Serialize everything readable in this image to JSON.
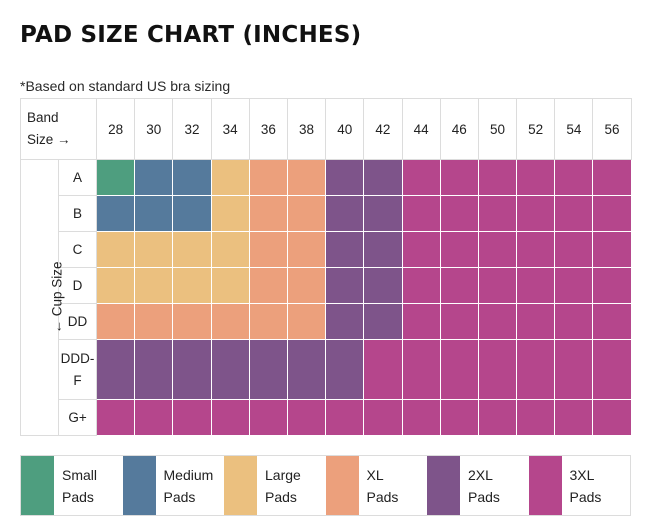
{
  "title": "PAD SIZE CHART (INCHES)",
  "note": "*Based on standard US bra sizing",
  "band_header": [
    "Band",
    "Size →"
  ],
  "cup_axis_label": "← Cup Size",
  "colors": {
    "Small": "#4e9e7f",
    "Medium": "#557a9c",
    "Large": "#ebc07f",
    "XL": "#eca07c",
    "2XL": "#7e548a",
    "3XL": "#b5468c"
  },
  "chart_data": {
    "type": "heatmap",
    "title": "PAD SIZE CHART (INCHES)",
    "xlabel": "Band Size →",
    "ylabel": "← Cup Size",
    "x": [
      "28",
      "30",
      "32",
      "34",
      "36",
      "38",
      "40",
      "42",
      "44",
      "46",
      "50",
      "52",
      "54",
      "56"
    ],
    "y": [
      {
        "label": [
          "A"
        ]
      },
      {
        "label": [
          "B"
        ]
      },
      {
        "label": [
          "C"
        ]
      },
      {
        "label": [
          "D"
        ]
      },
      {
        "label": [
          "DD"
        ]
      },
      {
        "label": [
          "DDD-",
          "F"
        ]
      },
      {
        "label": [
          "G+"
        ]
      }
    ],
    "categories": [
      "Small",
      "Medium",
      "Large",
      "XL",
      "2XL",
      "3XL"
    ],
    "values": [
      [
        "Small",
        "Medium",
        "Medium",
        "Large",
        "XL",
        "XL",
        "2XL",
        "2XL",
        "3XL",
        "3XL",
        "3XL",
        "3XL",
        "3XL",
        "3XL"
      ],
      [
        "Medium",
        "Medium",
        "Medium",
        "Large",
        "XL",
        "XL",
        "2XL",
        "2XL",
        "3XL",
        "3XL",
        "3XL",
        "3XL",
        "3XL",
        "3XL"
      ],
      [
        "Large",
        "Large",
        "Large",
        "Large",
        "XL",
        "XL",
        "2XL",
        "2XL",
        "3XL",
        "3XL",
        "3XL",
        "3XL",
        "3XL",
        "3XL"
      ],
      [
        "Large",
        "Large",
        "Large",
        "Large",
        "XL",
        "XL",
        "2XL",
        "2XL",
        "3XL",
        "3XL",
        "3XL",
        "3XL",
        "3XL",
        "3XL"
      ],
      [
        "XL",
        "XL",
        "XL",
        "XL",
        "XL",
        "XL",
        "2XL",
        "2XL",
        "3XL",
        "3XL",
        "3XL",
        "3XL",
        "3XL",
        "3XL"
      ],
      [
        "2XL",
        "2XL",
        "2XL",
        "2XL",
        "2XL",
        "2XL",
        "2XL",
        "3XL",
        "3XL",
        "3XL",
        "3XL",
        "3XL",
        "3XL",
        "3XL"
      ],
      [
        "3XL",
        "3XL",
        "3XL",
        "3XL",
        "3XL",
        "3XL",
        "3XL",
        "3XL",
        "3XL",
        "3XL",
        "3XL",
        "3XL",
        "3XL",
        "3XL"
      ]
    ],
    "legend": [
      {
        "key": "Small",
        "lines": [
          "Small",
          "Pads"
        ]
      },
      {
        "key": "Medium",
        "lines": [
          "Medium",
          "Pads"
        ]
      },
      {
        "key": "Large",
        "lines": [
          "Large",
          "Pads"
        ]
      },
      {
        "key": "XL",
        "lines": [
          "XL",
          "Pads"
        ]
      },
      {
        "key": "2XL",
        "lines": [
          "2XL",
          "Pads"
        ]
      },
      {
        "key": "3XL",
        "lines": [
          "3XL",
          "Pads"
        ]
      }
    ],
    "legend_position": "bottom"
  }
}
